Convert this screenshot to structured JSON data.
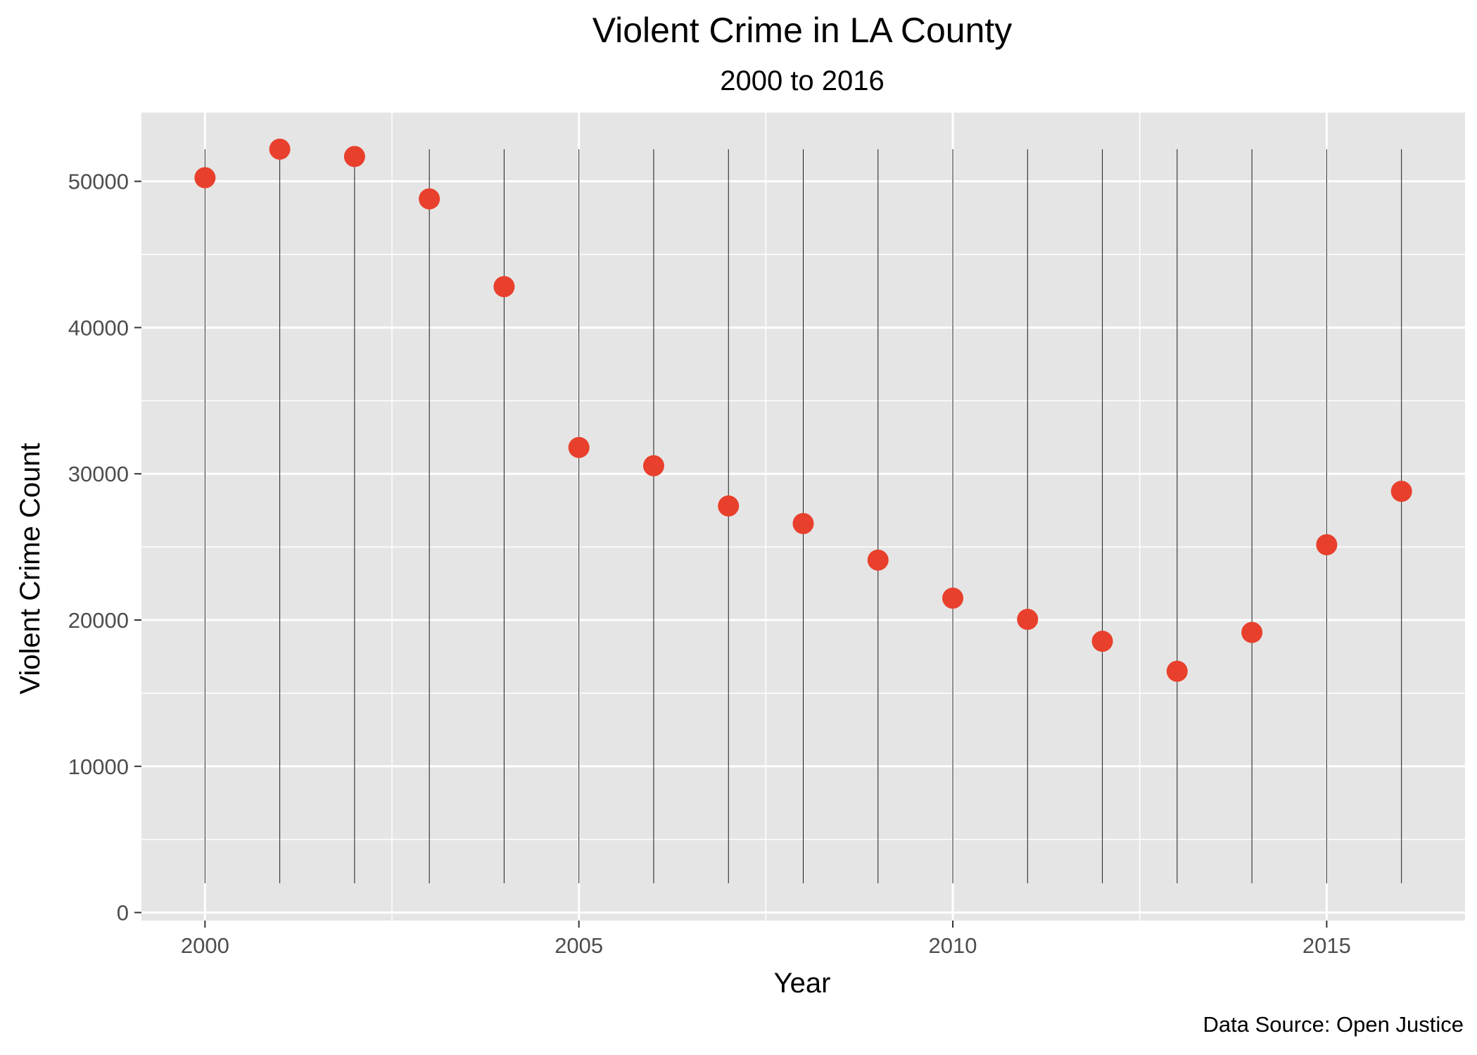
{
  "chart_data": {
    "type": "scatter",
    "title": "Violent Crime in LA County",
    "subtitle": "2000 to 2016",
    "xlabel": "Year",
    "ylabel": "Violent Crime Count",
    "caption": "Data Source: Open Justice",
    "x": [
      2000,
      2001,
      2002,
      2003,
      2004,
      2005,
      2006,
      2007,
      2008,
      2009,
      2010,
      2011,
      2012,
      2013,
      2014,
      2015,
      2016
    ],
    "y": [
      50250,
      52200,
      51700,
      48800,
      42800,
      31800,
      30550,
      27800,
      26600,
      24100,
      21500,
      20050,
      18550,
      16500,
      19150,
      25150,
      28800
    ],
    "xlim": [
      1999.15,
      2016.85
    ],
    "ylim": [
      -550,
      54700
    ],
    "x_ticks": [
      2000,
      2005,
      2010,
      2015
    ],
    "x_tick_labels": [
      "2000",
      "2005",
      "2010",
      "2015"
    ],
    "y_ticks": [
      0,
      10000,
      20000,
      30000,
      40000,
      50000
    ],
    "y_tick_labels": [
      "0",
      "10000",
      "20000",
      "30000",
      "40000",
      "50000"
    ],
    "vertical_reference_lines": {
      "from": 2000,
      "to": 52200
    },
    "grid": true,
    "legend": "none",
    "colors": {
      "point": "#e8402c",
      "panel_background": "#e5e5e5",
      "grid_line": "#ffffff",
      "reference_line": "#1a1a1a"
    }
  }
}
